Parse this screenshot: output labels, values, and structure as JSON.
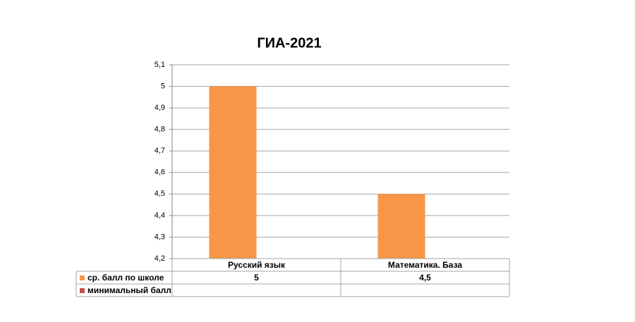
{
  "chart_data": {
    "type": "bar",
    "title": "ГИА-2021",
    "categories": [
      "Русский язык",
      "Математика. База"
    ],
    "series": [
      {
        "name": "ср. балл по школе",
        "color": "#f79646",
        "values": [
          5,
          4.5
        ],
        "value_labels": [
          "5",
          "4,5"
        ]
      },
      {
        "name": "минимальный балл",
        "color": "#c0504d",
        "values": [
          null,
          null
        ]
      }
    ],
    "ylim": [
      4.2,
      5.1
    ],
    "yticks": [
      {
        "value": 4.2,
        "label": "4,2"
      },
      {
        "value": 4.3,
        "label": "4,3"
      },
      {
        "value": 4.4,
        "label": "4,4"
      },
      {
        "value": 4.5,
        "label": "4,5"
      },
      {
        "value": 4.6,
        "label": "4,6"
      },
      {
        "value": 4.7,
        "label": "4,7"
      },
      {
        "value": 4.8,
        "label": "4,8"
      },
      {
        "value": 4.9,
        "label": "4,9"
      },
      5,
      {
        "value": 5.1,
        "label": "5,1"
      }
    ],
    "grid": true
  }
}
